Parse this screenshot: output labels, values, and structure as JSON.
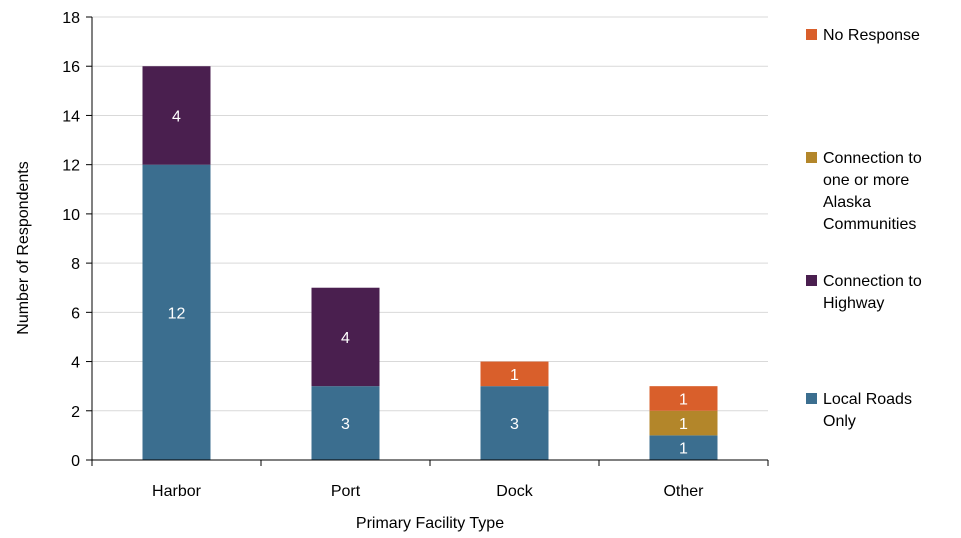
{
  "chart_data": {
    "type": "bar",
    "stacked": true,
    "categories": [
      "Harbor",
      "Port",
      "Dock",
      "Other"
    ],
    "series": [
      {
        "name": "Local Roads Only",
        "color": "#3b6e8f",
        "values": [
          12,
          3,
          3,
          1
        ]
      },
      {
        "name": "Connection to Highway",
        "color": "#4a1f4f",
        "values": [
          4,
          4,
          0,
          0
        ]
      },
      {
        "name": "Connection to one or more Alaska Communities",
        "color": "#b3862a",
        "values": [
          0,
          0,
          0,
          1
        ]
      },
      {
        "name": "No Response",
        "color": "#d95f2b",
        "values": [
          0,
          0,
          1,
          1
        ]
      }
    ],
    "legend_order": [
      "No Response",
      "Connection to one or more Alaska Communities",
      "Connection to Highway",
      "Local Roads Only"
    ],
    "legend_lines": {
      "No Response": [
        "No Response"
      ],
      "Connection to one or more Alaska Communities": [
        "Connection to",
        "one or more",
        "Alaska",
        "Communities"
      ],
      "Connection to Highway": [
        "Connection to",
        "Highway"
      ],
      "Local Roads Only": [
        "Local Roads",
        "Only"
      ]
    },
    "xlabel": "Primary Facility Type",
    "ylabel": "Number of Respondents",
    "ylim": [
      0,
      18
    ],
    "yticks": [
      0,
      2,
      4,
      6,
      8,
      10,
      12,
      14,
      16,
      18
    ],
    "grid": true,
    "legend_position": "right"
  }
}
